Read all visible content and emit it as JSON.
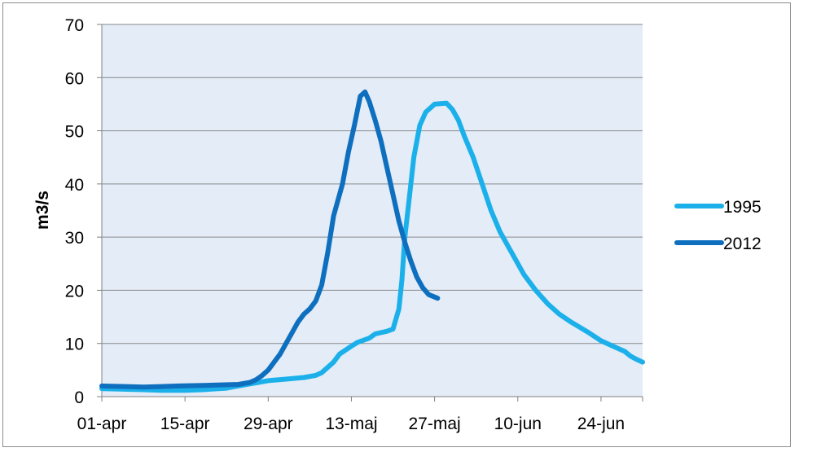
{
  "chart_data": {
    "type": "line",
    "title": "",
    "xlabel": "",
    "ylabel": "m3/s",
    "ylim": [
      0,
      70
    ],
    "y_ticks": [
      "0",
      "10",
      "20",
      "30",
      "40",
      "50",
      "60",
      "70"
    ],
    "x_ticks": [
      "01-apr",
      "15-apr",
      "29-apr",
      "13-maj",
      "27-maj",
      "10-jun",
      "24-jun"
    ],
    "x_range_days": [
      0,
      91
    ],
    "grid": "horizontal",
    "plot_background": "#e3ecf7",
    "legend_position": "right",
    "series": [
      {
        "name": "1995",
        "color": "#1cb0ea",
        "points": [
          [
            0,
            1.5
          ],
          [
            7,
            1.3
          ],
          [
            10,
            1.2
          ],
          [
            14,
            1.2
          ],
          [
            17,
            1.3
          ],
          [
            21,
            1.6
          ],
          [
            24,
            2.2
          ],
          [
            28,
            3.0
          ],
          [
            31,
            3.3
          ],
          [
            34,
            3.6
          ],
          [
            36,
            4.0
          ],
          [
            37,
            4.5
          ],
          [
            38,
            5.5
          ],
          [
            39,
            6.5
          ],
          [
            40,
            8.0
          ],
          [
            42,
            9.5
          ],
          [
            43,
            10.2
          ],
          [
            45,
            11.0
          ],
          [
            46,
            11.8
          ],
          [
            48,
            12.3
          ],
          [
            49,
            12.7
          ],
          [
            50,
            16.5
          ],
          [
            50.5,
            22
          ],
          [
            51,
            30
          ],
          [
            51.8,
            38
          ],
          [
            52.5,
            45
          ],
          [
            53.5,
            51
          ],
          [
            54.5,
            53.5
          ],
          [
            56,
            55
          ],
          [
            58,
            55.2
          ],
          [
            59,
            54
          ],
          [
            60,
            52
          ],
          [
            61,
            49
          ],
          [
            62.5,
            45
          ],
          [
            64,
            40
          ],
          [
            65.5,
            35
          ],
          [
            67,
            31
          ],
          [
            69,
            27
          ],
          [
            71,
            23
          ],
          [
            73,
            20
          ],
          [
            75,
            17.5
          ],
          [
            77,
            15.5
          ],
          [
            79,
            14
          ],
          [
            82,
            12
          ],
          [
            84,
            10.5
          ],
          [
            86,
            9.5
          ],
          [
            88,
            8.5
          ],
          [
            89,
            7.6
          ],
          [
            90,
            7.0
          ],
          [
            91,
            6.5
          ]
        ]
      },
      {
        "name": "2012",
        "color": "#0f6fbf",
        "points": [
          [
            0,
            2.0
          ],
          [
            4,
            1.9
          ],
          [
            7,
            1.8
          ],
          [
            10,
            1.9
          ],
          [
            13,
            2.0
          ],
          [
            17,
            2.1
          ],
          [
            20,
            2.2
          ],
          [
            23,
            2.3
          ],
          [
            25,
            2.7
          ],
          [
            26,
            3.2
          ],
          [
            27,
            4.0
          ],
          [
            28,
            5.0
          ],
          [
            29,
            6.5
          ],
          [
            30,
            8.0
          ],
          [
            31,
            10.0
          ],
          [
            32,
            12.0
          ],
          [
            33,
            14.0
          ],
          [
            34,
            15.5
          ],
          [
            35,
            16.5
          ],
          [
            36,
            18.0
          ],
          [
            37,
            21.0
          ],
          [
            38,
            27.0
          ],
          [
            39,
            34.0
          ],
          [
            40.5,
            40.0
          ],
          [
            41.5,
            46.0
          ],
          [
            42.5,
            51.0
          ],
          [
            43.5,
            56.5
          ],
          [
            44.3,
            57.3
          ],
          [
            45,
            55.5
          ],
          [
            46,
            52
          ],
          [
            47,
            48
          ],
          [
            48,
            43
          ],
          [
            49,
            38
          ],
          [
            50,
            33
          ],
          [
            51,
            29
          ],
          [
            52,
            25.5
          ],
          [
            53,
            22.5
          ],
          [
            54,
            20.5
          ],
          [
            55,
            19.2
          ],
          [
            56.5,
            18.5
          ]
        ]
      }
    ]
  }
}
